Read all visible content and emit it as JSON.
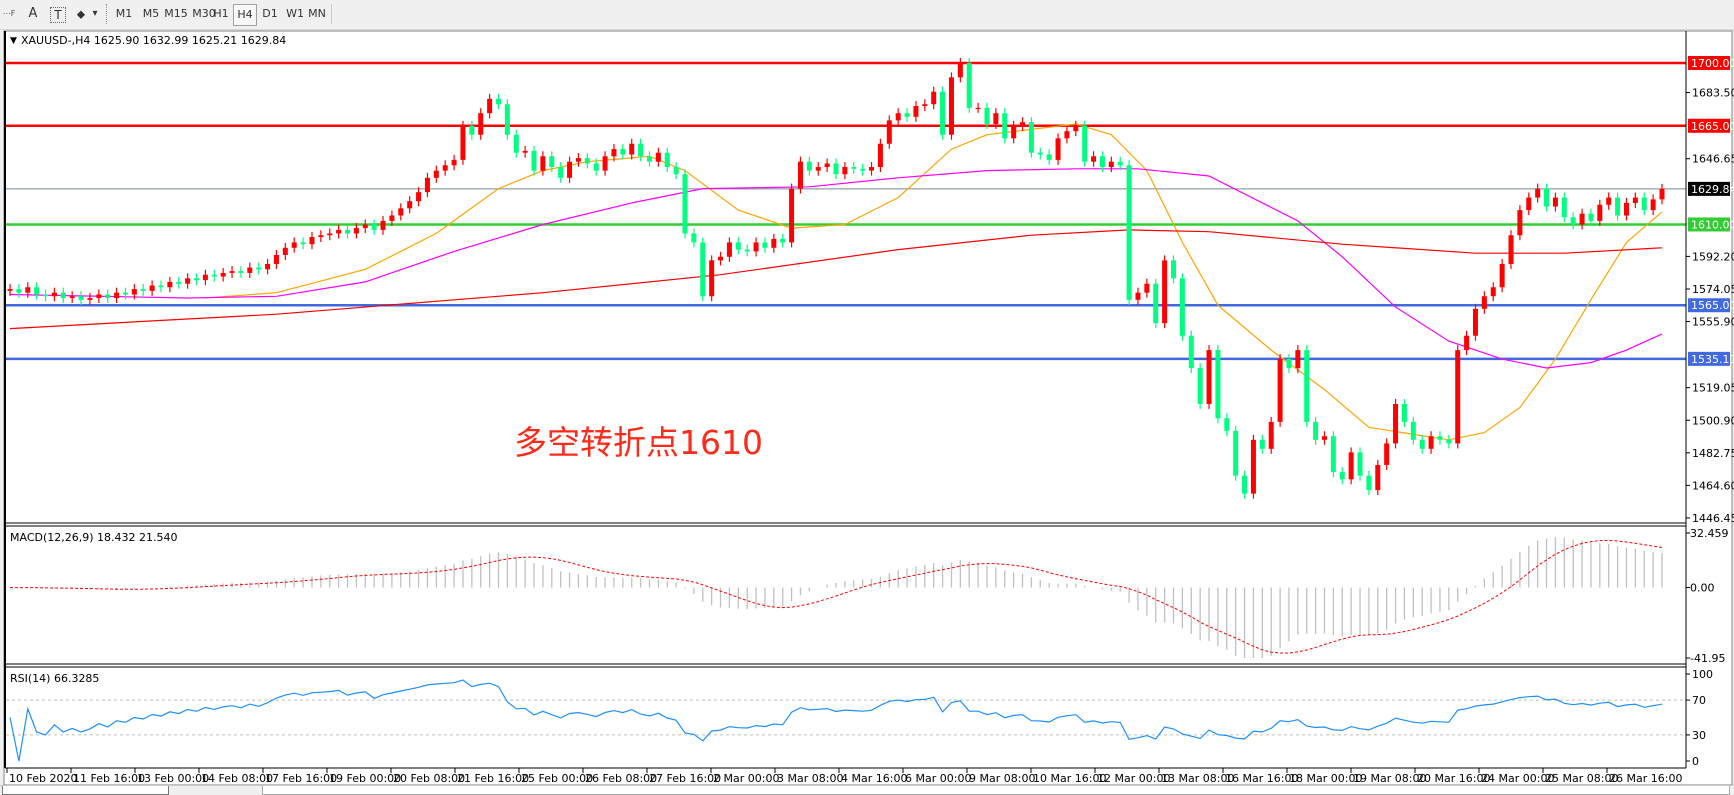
{
  "toolbar": {
    "tools": [
      {
        "name": "properties-grid",
        "glyph": "⋯F"
      },
      {
        "name": "text",
        "glyph": "A"
      },
      {
        "name": "text-label",
        "glyph": "T"
      },
      {
        "name": "arrows",
        "glyph": "⬥"
      },
      {
        "name": "dropdown",
        "glyph": "▾"
      }
    ],
    "timeframes": [
      "M1",
      "M5",
      "M15",
      "M30",
      "H1",
      "H4",
      "D1",
      "W1",
      "MN"
    ],
    "active_timeframe": "H4"
  },
  "main": {
    "header_arrow": "▼",
    "header": "XAUUSD-,H4  1625.90 1632.99 1625.21 1629.84",
    "annotation": "多空转折点1610"
  },
  "time_axis": {
    "labels": [
      "10 Feb 2020",
      "11 Feb 16:00",
      "13 Feb 00:00",
      "14 Feb 08:00",
      "17 Feb 16:00",
      "19 Feb 00:00",
      "20 Feb 08:00",
      "21 Feb 16:00",
      "25 Feb 00:00",
      "26 Feb 08:00",
      "27 Feb 16:00",
      "2 Mar 00:00",
      "3 Mar 08:00",
      "4 Mar 16:00",
      "6 Mar 00:00",
      "9 Mar 08:00",
      "10 Mar 16:00",
      "12 Mar 00:00",
      "13 Mar 08:00",
      "16 Mar 16:00",
      "18 Mar 00:00",
      "19 Mar 08:00",
      "20 Mar 16:00",
      "24 Mar 00:00",
      "25 Mar 08:00",
      "26 Mar 16:00"
    ]
  },
  "chart_data": [
    {
      "type": "candlestick",
      "symbol": "XAUUSD-",
      "timeframe": "H4",
      "ylim": [
        1444.2,
        1716.7
      ],
      "bull_color": "#FF0000",
      "bear_color": "#00FF80",
      "price_ticks": [
        "1683.50",
        "1646.65",
        "1592.20",
        "1574.05",
        "1555.90",
        "1519.05",
        "1500.90",
        "1482.75",
        "1464.60",
        "1446.45"
      ],
      "hlines": [
        {
          "value": 1700.0,
          "label": "1700.00",
          "color": "#FF0000"
        },
        {
          "value": 1665.0,
          "label": "1665.00",
          "color": "#FF0000"
        },
        {
          "value": 1629.84,
          "label": "1629.84",
          "color": "#000000",
          "line_color": "#778899"
        },
        {
          "value": 1610.0,
          "label": "1610.00",
          "color": "#32CD32"
        },
        {
          "value": 1565.0,
          "label": "1565.00",
          "color": "#4169E1"
        },
        {
          "value": 1535.11,
          "label": "1535.11",
          "color": "#4169E1"
        }
      ],
      "first_open": 1573,
      "close": [
        1574,
        1572,
        1575,
        1571,
        1570,
        1572,
        1569,
        1570,
        1568,
        1569,
        1571,
        1569,
        1572,
        1571,
        1574,
        1573,
        1576,
        1575,
        1578,
        1577,
        1580,
        1579,
        1582,
        1581,
        1583,
        1584,
        1583,
        1586,
        1585,
        1588,
        1593,
        1597,
        1600,
        1599,
        1603,
        1604,
        1605,
        1607,
        1605,
        1608,
        1610,
        1607,
        1612,
        1615,
        1619,
        1623,
        1628,
        1636,
        1640,
        1643,
        1646,
        1665,
        1660,
        1672,
        1680,
        1677,
        1660,
        1650,
        1651,
        1640,
        1648,
        1642,
        1636,
        1645,
        1647,
        1644,
        1640,
        1648,
        1652,
        1649,
        1655,
        1648,
        1645,
        1650,
        1642,
        1638,
        1605,
        1600,
        1570,
        1590,
        1592,
        1600,
        1596,
        1595,
        1600,
        1597,
        1602,
        1600,
        1630,
        1645,
        1640,
        1642,
        1644,
        1638,
        1642,
        1641,
        1640,
        1642,
        1655,
        1668,
        1672,
        1670,
        1676,
        1677,
        1684,
        1660,
        1692,
        1700,
        1675,
        1675,
        1666,
        1672,
        1658,
        1665,
        1667,
        1650,
        1649,
        1646,
        1658,
        1662,
        1665,
        1645,
        1648,
        1642,
        1645,
        1643,
        1568,
        1572,
        1577,
        1555,
        1590,
        1580,
        1548,
        1530,
        1510,
        1540,
        1502,
        1495,
        1470,
        1460,
        1490,
        1485,
        1500,
        1535,
        1530,
        1540,
        1500,
        1490,
        1492,
        1472,
        1468,
        1483,
        1470,
        1462,
        1476,
        1488,
        1510,
        1500,
        1490,
        1485,
        1492,
        1490,
        1488,
        1540,
        1548,
        1563,
        1570,
        1575,
        1588,
        1604,
        1618,
        1625,
        1630,
        1620,
        1625,
        1614,
        1610,
        1616,
        1612,
        1621,
        1625,
        1615,
        1622,
        1625,
        1618,
        1624,
        1629.84
      ],
      "moving_averages": [
        {
          "color": "#FFA500",
          "points": [
            [
              22,
              1569
            ],
            [
              30,
              1572
            ],
            [
              40,
              1585
            ],
            [
              48,
              1605
            ],
            [
              55,
              1630
            ],
            [
              60,
              1640
            ],
            [
              65,
              1645
            ],
            [
              72,
              1648
            ],
            [
              76,
              1640
            ],
            [
              82,
              1618
            ],
            [
              88,
              1608
            ],
            [
              94,
              1610
            ],
            [
              100,
              1625
            ],
            [
              106,
              1652
            ],
            [
              110,
              1660
            ],
            [
              115,
              1663
            ],
            [
              120,
              1666
            ],
            [
              124,
              1660
            ],
            [
              128,
              1640
            ],
            [
              132,
              1600
            ],
            [
              136,
              1565
            ],
            [
              142,
              1540
            ],
            [
              148,
              1518
            ],
            [
              153,
              1497
            ],
            [
              158,
              1493
            ],
            [
              162,
              1490
            ],
            [
              166,
              1494
            ],
            [
              170,
              1508
            ],
            [
              174,
              1535
            ],
            [
              178,
              1568
            ],
            [
              182,
              1600
            ],
            [
              186,
              1617
            ]
          ]
        },
        {
          "color": "#FF00FF",
          "points": [
            [
              0,
              1571
            ],
            [
              20,
              1569
            ],
            [
              30,
              1570
            ],
            [
              40,
              1578
            ],
            [
              50,
              1595
            ],
            [
              60,
              1610
            ],
            [
              70,
              1622
            ],
            [
              78,
              1630
            ],
            [
              90,
              1631
            ],
            [
              100,
              1636
            ],
            [
              110,
              1640
            ],
            [
              120,
              1641
            ],
            [
              127,
              1641
            ],
            [
              135,
              1637
            ],
            [
              145,
              1612
            ],
            [
              150,
              1592
            ],
            [
              156,
              1564
            ],
            [
              162,
              1545
            ],
            [
              168,
              1535
            ],
            [
              173,
              1530
            ],
            [
              178,
              1533
            ],
            [
              182,
              1540
            ],
            [
              186,
              1549
            ]
          ]
        },
        {
          "color": "#FF0000",
          "points": [
            [
              0,
              1552
            ],
            [
              30,
              1560
            ],
            [
              60,
              1572
            ],
            [
              80,
              1582
            ],
            [
              100,
              1596
            ],
            [
              115,
              1604
            ],
            [
              126,
              1607
            ],
            [
              135,
              1606
            ],
            [
              150,
              1599
            ],
            [
              165,
              1594
            ],
            [
              175,
              1594
            ],
            [
              186,
              1597
            ]
          ]
        }
      ]
    },
    {
      "type": "macd",
      "label": "MACD(12,26,9) 18.432 21.540",
      "ylim": [
        -41.95,
        32.459
      ],
      "ticks": [
        "32.459",
        "0.00",
        "-41.95"
      ],
      "histogram_color": "#C0C0C0",
      "signal_color": "#FF0000"
    },
    {
      "type": "rsi",
      "label": "RSI(14) 66.3285",
      "ylim": [
        0,
        100
      ],
      "ticks": [
        "100",
        "70",
        "30",
        "0"
      ],
      "levels": [
        70,
        30
      ],
      "line_color": "#1E90FF"
    }
  ]
}
